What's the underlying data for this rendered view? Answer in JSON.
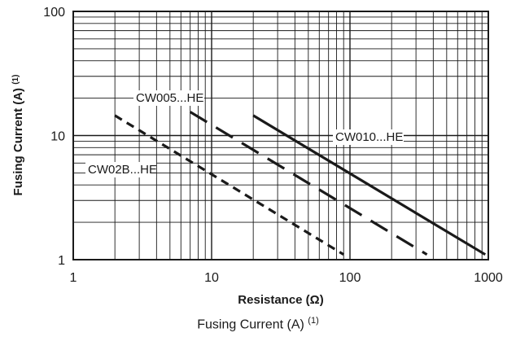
{
  "chart_data": {
    "type": "line",
    "title": "",
    "xlabel": "Resistance (Ω)",
    "ylabel": "Fusing Current (A) (1)",
    "x_scale": "log",
    "y_scale": "log",
    "xlim": [
      1,
      1000
    ],
    "ylim": [
      1,
      100
    ],
    "x_tick_labels": [
      "1",
      "10",
      "100",
      "1000"
    ],
    "y_tick_labels": [
      "1",
      "10",
      "100"
    ],
    "grid": true,
    "series": [
      {
        "name": "CW02B...HE",
        "style": "short-dash",
        "x": [
          2,
          90
        ],
        "y": [
          14.5,
          1.1
        ]
      },
      {
        "name": "CW005...HE",
        "style": "long-dash",
        "x": [
          7,
          360
        ],
        "y": [
          15.5,
          1.1
        ]
      },
      {
        "name": "CW010...HE",
        "style": "solid",
        "x": [
          20,
          950
        ],
        "y": [
          14.5,
          1.1
        ]
      }
    ],
    "caption": {
      "text": "Fusing Current (A) ",
      "sup": "(1)"
    }
  }
}
